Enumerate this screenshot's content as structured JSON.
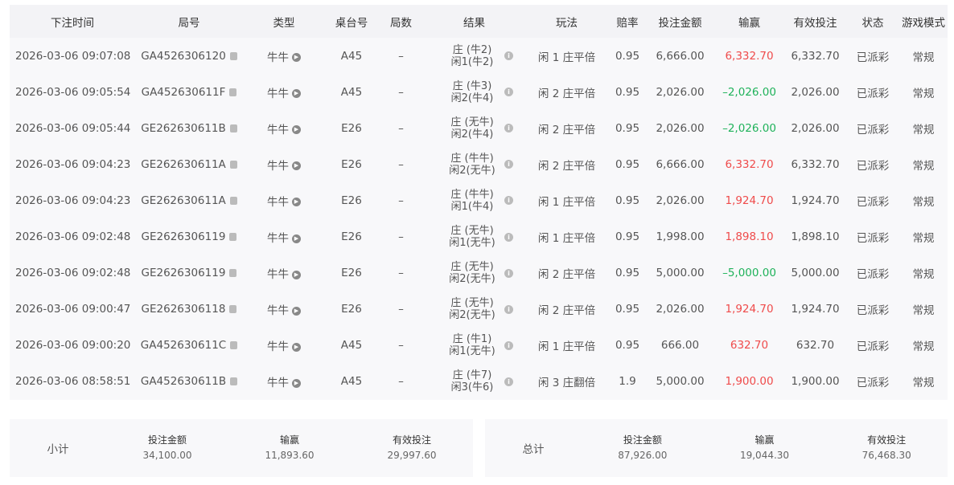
{
  "headers": [
    "下注时间",
    "局号",
    "类型",
    "桌台号",
    "局数",
    "结果",
    "玩法",
    "赔率",
    "投注金额",
    "输赢",
    "有效投注",
    "状态",
    "游戏模式"
  ],
  "rows": [
    {
      "time": "2026-03-06 09:07:08",
      "id": "GA4526306120",
      "type": "牛牛",
      "table": "A45",
      "round": "–",
      "r1": "庄 (牛2)",
      "r2": "闲1(牛2)",
      "play": "闲 1 庄平倍",
      "odds": "0.95",
      "bet": "6,666.00",
      "win": "6,332.70",
      "win_color": "red",
      "valid": "6,332.70",
      "status": "已派彩",
      "mode": "常规"
    },
    {
      "time": "2026-03-06 09:05:54",
      "id": "GA452630611F",
      "type": "牛牛",
      "table": "A45",
      "round": "–",
      "r1": "庄 (牛3)",
      "r2": "闲2(牛4)",
      "play": "闲 2 庄平倍",
      "odds": "0.95",
      "bet": "2,026.00",
      "win": "–2,026.00",
      "win_color": "green",
      "valid": "2,026.00",
      "status": "已派彩",
      "mode": "常规"
    },
    {
      "time": "2026-03-06 09:05:44",
      "id": "GE262630611B",
      "type": "牛牛",
      "table": "E26",
      "round": "–",
      "r1": "庄 (无牛)",
      "r2": "闲2(牛4)",
      "play": "闲 2 庄平倍",
      "odds": "0.95",
      "bet": "2,026.00",
      "win": "–2,026.00",
      "win_color": "green",
      "valid": "2,026.00",
      "status": "已派彩",
      "mode": "常规"
    },
    {
      "time": "2026-03-06 09:04:23",
      "id": "GE262630611A",
      "type": "牛牛",
      "table": "E26",
      "round": "–",
      "r1": "庄 (牛牛)",
      "r2": "闲2(无牛)",
      "play": "闲 2 庄平倍",
      "odds": "0.95",
      "bet": "6,666.00",
      "win": "6,332.70",
      "win_color": "red",
      "valid": "6,332.70",
      "status": "已派彩",
      "mode": "常规"
    },
    {
      "time": "2026-03-06 09:04:23",
      "id": "GE262630611A",
      "type": "牛牛",
      "table": "E26",
      "round": "–",
      "r1": "庄 (牛牛)",
      "r2": "闲1(牛4)",
      "play": "闲 1 庄平倍",
      "odds": "0.95",
      "bet": "2,026.00",
      "win": "1,924.70",
      "win_color": "red",
      "valid": "1,924.70",
      "status": "已派彩",
      "mode": "常规"
    },
    {
      "time": "2026-03-06 09:02:48",
      "id": "GE2626306119",
      "type": "牛牛",
      "table": "E26",
      "round": "–",
      "r1": "庄 (无牛)",
      "r2": "闲1(无牛)",
      "play": "闲 1 庄平倍",
      "odds": "0.95",
      "bet": "1,998.00",
      "win": "1,898.10",
      "win_color": "red",
      "valid": "1,898.10",
      "status": "已派彩",
      "mode": "常规"
    },
    {
      "time": "2026-03-06 09:02:48",
      "id": "GE2626306119",
      "type": "牛牛",
      "table": "E26",
      "round": "–",
      "r1": "庄 (无牛)",
      "r2": "闲2(无牛)",
      "play": "闲 2 庄平倍",
      "odds": "0.95",
      "bet": "5,000.00",
      "win": "–5,000.00",
      "win_color": "green",
      "valid": "5,000.00",
      "status": "已派彩",
      "mode": "常规"
    },
    {
      "time": "2026-03-06 09:00:47",
      "id": "GE2626306118",
      "type": "牛牛",
      "table": "E26",
      "round": "–",
      "r1": "庄 (无牛)",
      "r2": "闲2(无牛)",
      "play": "闲 2 庄平倍",
      "odds": "0.95",
      "bet": "2,026.00",
      "win": "1,924.70",
      "win_color": "red",
      "valid": "1,924.70",
      "status": "已派彩",
      "mode": "常规"
    },
    {
      "time": "2026-03-06 09:00:20",
      "id": "GA452630611C",
      "type": "牛牛",
      "table": "A45",
      "round": "–",
      "r1": "庄 (牛1)",
      "r2": "闲1(无牛)",
      "play": "闲 1 庄平倍",
      "odds": "0.95",
      "bet": "666.00",
      "win": "632.70",
      "win_color": "red",
      "valid": "632.70",
      "status": "已派彩",
      "mode": "常规"
    },
    {
      "time": "2026-03-06 08:58:51",
      "id": "GA452630611B",
      "type": "牛牛",
      "table": "A45",
      "round": "–",
      "r1": "庄 (牛7)",
      "r2": "闲3(牛6)",
      "play": "闲 3 庄翻倍",
      "odds": "1.9",
      "bet": "5,000.00",
      "win": "1,900.00",
      "win_color": "red",
      "valid": "1,900.00",
      "status": "已派彩",
      "mode": "常规"
    }
  ],
  "subtotal": {
    "label": "小计",
    "cols": [
      {
        "h": "投注金额",
        "v": "34,100.00"
      },
      {
        "h": "输赢",
        "v": "11,893.60",
        "color": "red"
      },
      {
        "h": "有效投注",
        "v": "29,997.60"
      }
    ]
  },
  "total": {
    "label": "总计",
    "cols": [
      {
        "h": "投注金额",
        "v": "87,926.00"
      },
      {
        "h": "输赢",
        "v": "19,044.30",
        "color": "red"
      },
      {
        "h": "有效投注",
        "v": "76,468.30"
      }
    ]
  },
  "colors": {
    "red": "#ef4b4b",
    "green": "#1fb25a"
  },
  "icons": {
    "copy": "copy-icon",
    "play": "play-icon",
    "info": "info-icon"
  }
}
